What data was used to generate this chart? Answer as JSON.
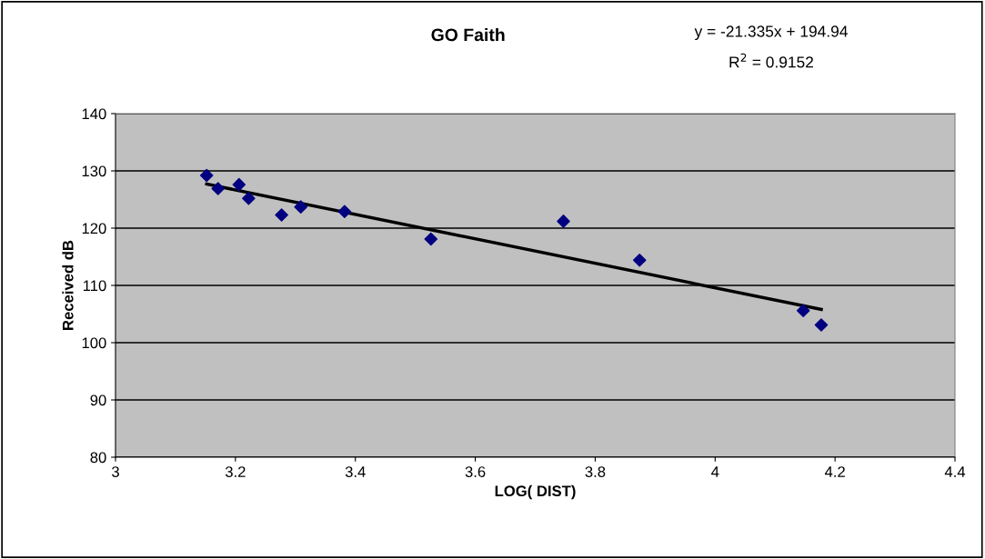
{
  "chart_data": {
    "type": "scatter",
    "title": "GO Faith",
    "xlabel": "LOG( DIST)",
    "ylabel": "Received dB",
    "annotations": [
      "y = -21.335x + 194.94",
      "R$^{2}$ = 0.9152"
    ],
    "series": [
      {
        "color": "#000080",
        "marker": "diamond",
        "x": [
          3.152,
          3.171,
          3.206,
          3.222,
          3.277,
          3.309,
          3.382,
          3.526,
          3.747,
          3.874,
          4.147,
          4.177
        ],
        "values": [
          129.2,
          126.9,
          127.6,
          125.2,
          122.3,
          123.7,
          122.9,
          118.1,
          121.2,
          114.4,
          105.6,
          103.1
        ]
      },
      {
        "type": "line",
        "color": "#000000",
        "line_style": "solid",
        "x": [
          3.152,
          4.177
        ],
        "values": [
          127.7,
          105.8
        ]
      }
    ],
    "xlim": [
      3,
      4.4
    ],
    "xticks": [
      3,
      3.2,
      3.4,
      3.6,
      3.8,
      4,
      4.2,
      4.4
    ],
    "ylim": [
      80,
      140
    ],
    "yticks": [
      80,
      90,
      100,
      110,
      120,
      130,
      140
    ],
    "grid": "y",
    "legend": false
  }
}
